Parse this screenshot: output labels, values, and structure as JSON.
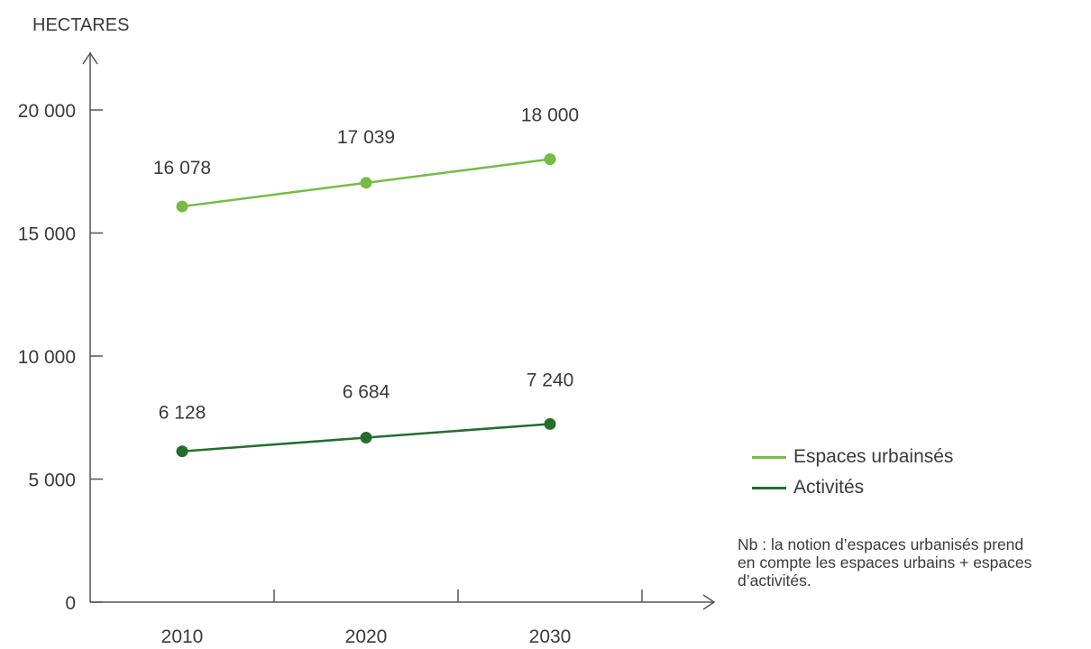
{
  "chart_data": {
    "type": "line",
    "ylabel": "HECTARES",
    "categories": [
      "2010",
      "2020",
      "2030"
    ],
    "ylim": [
      0,
      20000
    ],
    "yticks": [
      0,
      5000,
      10000,
      15000,
      20000
    ],
    "ytick_labels": [
      "0",
      "5 000",
      "10 000",
      "15 000",
      "20 000"
    ],
    "grid": false,
    "series": [
      {
        "name": "Espaces urbainsés",
        "color": "#76bb46",
        "values": [
          16078,
          17039,
          18000
        ],
        "labels": [
          "16 078",
          "17 039",
          "18 000"
        ]
      },
      {
        "name": "Activités",
        "color": "#236e2d",
        "values": [
          6128,
          6684,
          7240
        ],
        "labels": [
          "6 128",
          "6 684",
          "7 240"
        ]
      }
    ],
    "legend": "right"
  },
  "note": {
    "line1": "Nb : la notion d’espaces urbanisés prend",
    "line2": "en compte les espaces urbains + espaces",
    "line3": "d’activités."
  }
}
